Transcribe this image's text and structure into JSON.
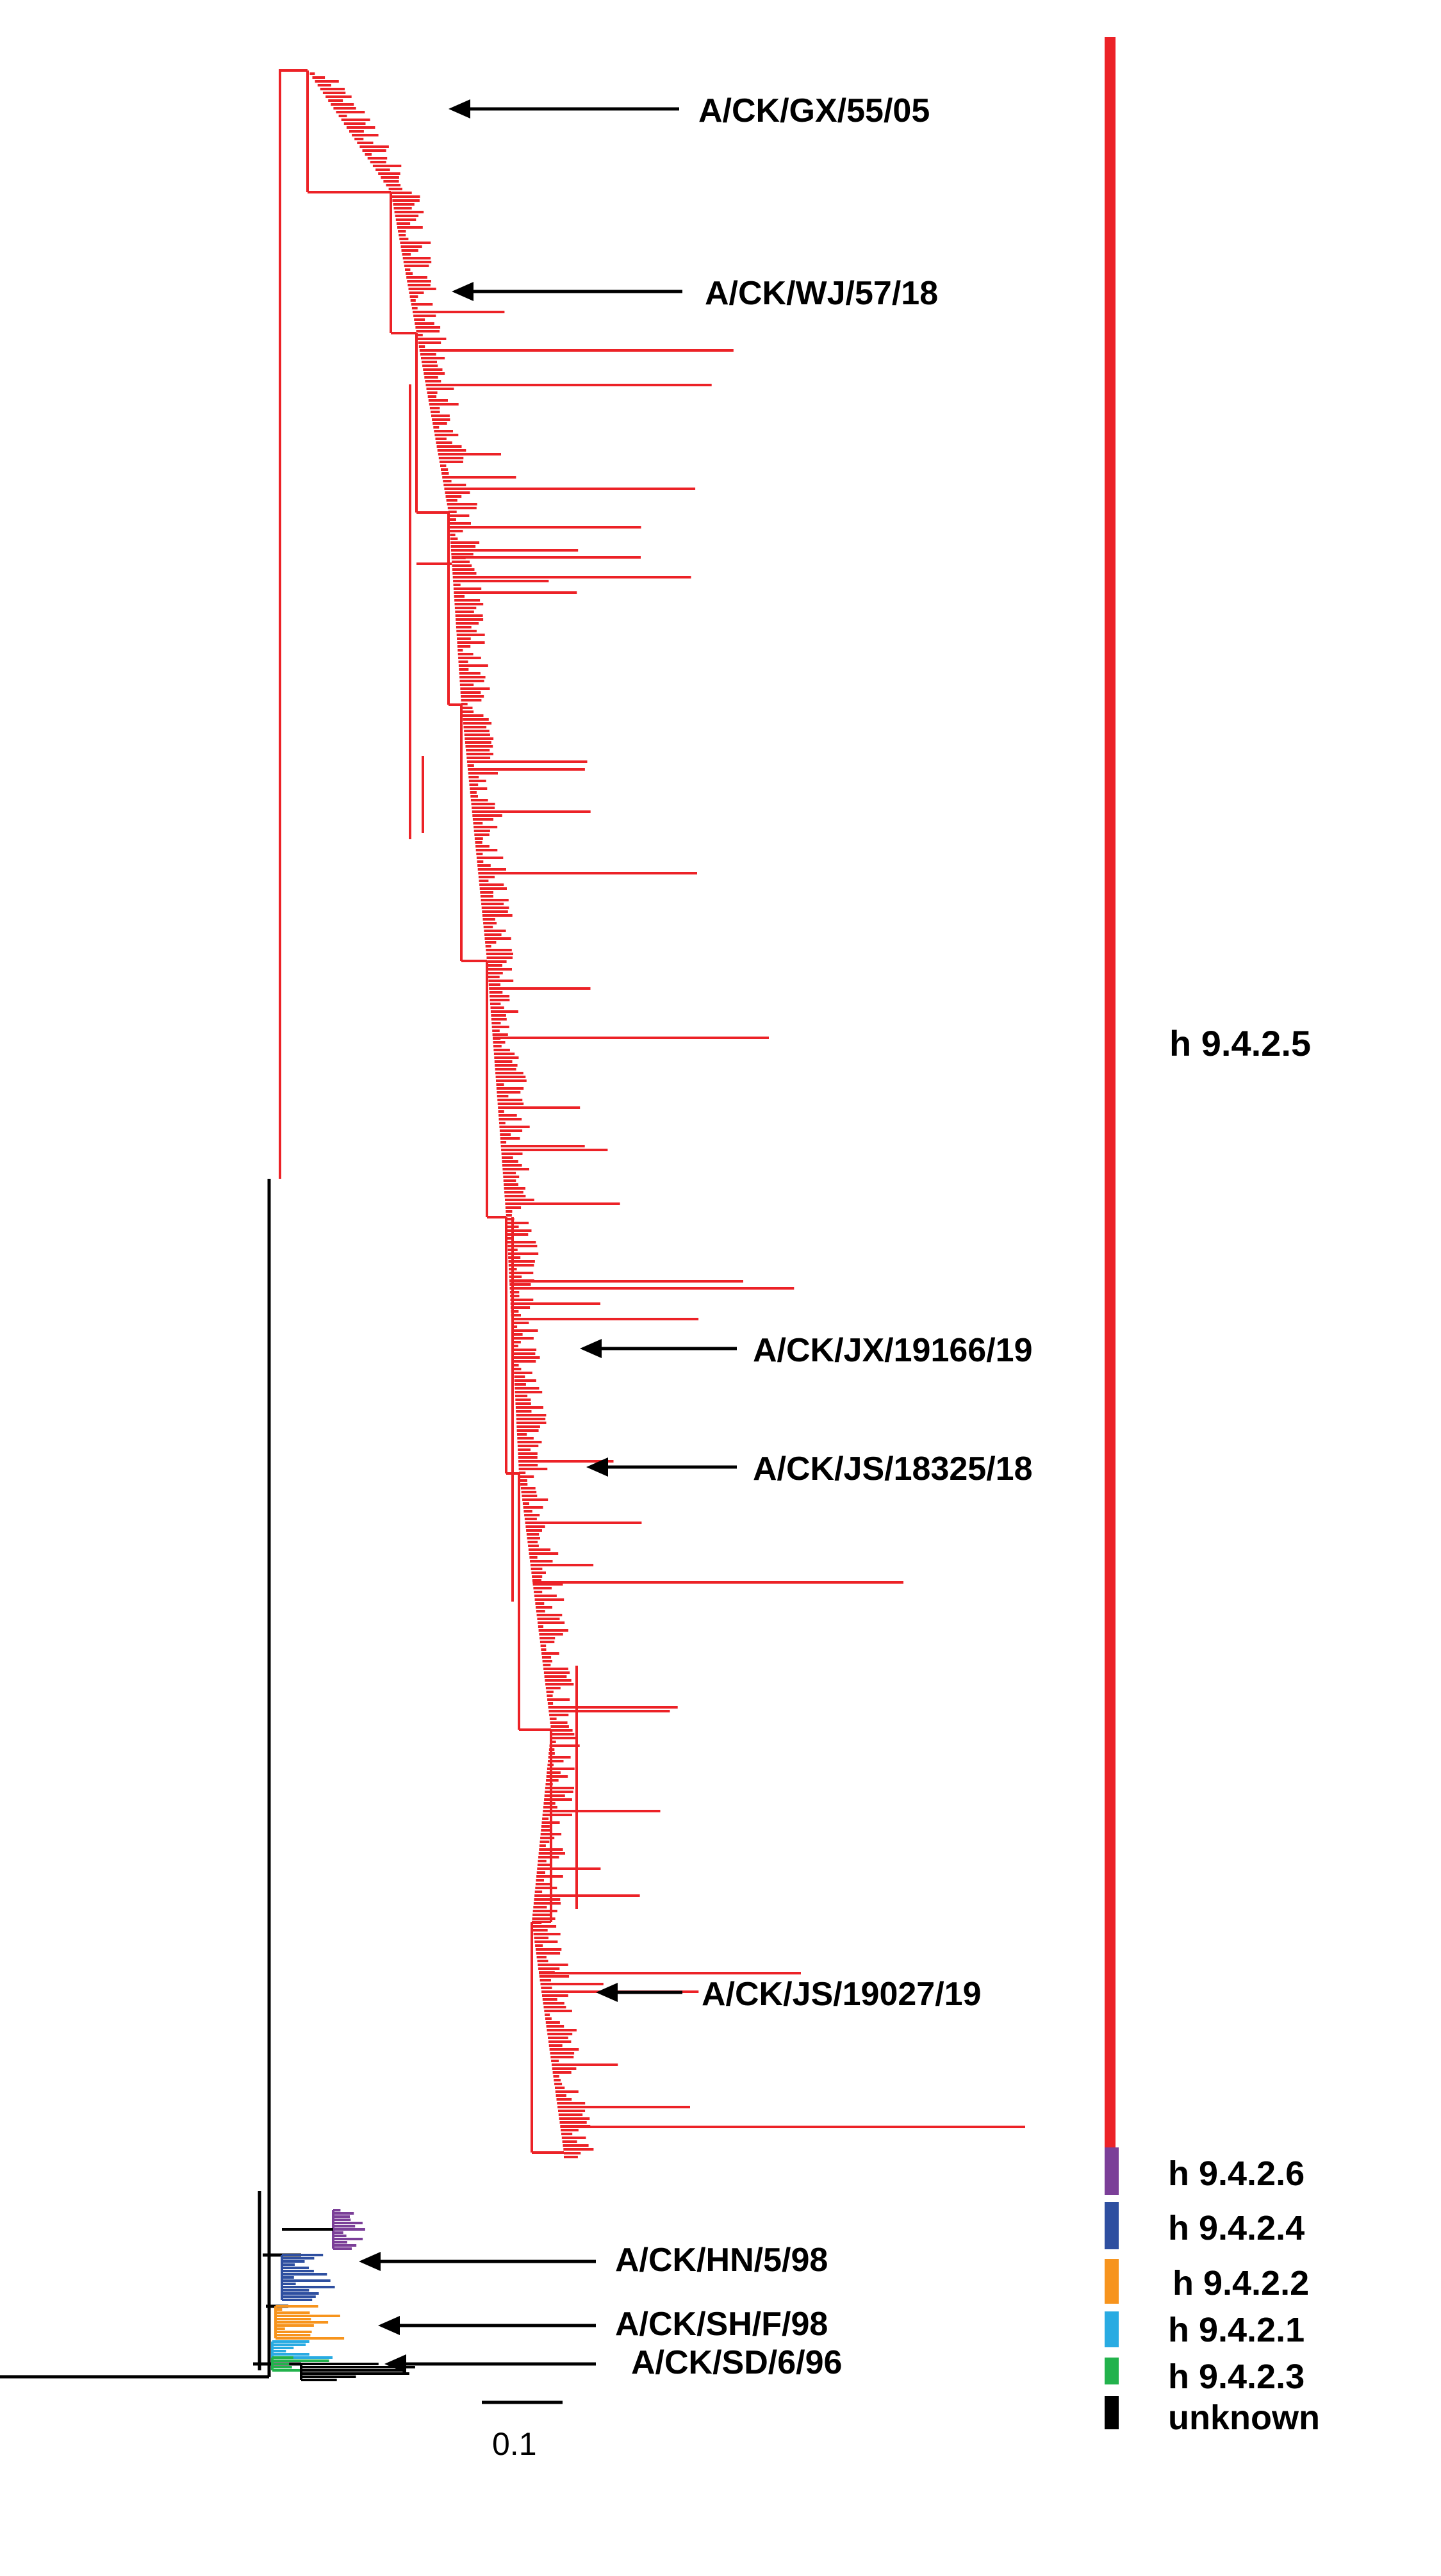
{
  "colors": {
    "h9425": "#ec2227",
    "h9426": "#7b3f98",
    "h9424": "#2e4fa0",
    "h9422": "#f7941d",
    "h9421": "#29abe2",
    "h9423": "#22b24c",
    "unknown": "#000000",
    "arrow": "#000000"
  },
  "strain_labels": [
    "A/CK/GX/55/05",
    "A/CK/WJ/57/18",
    "A/CK/JX/19166/19",
    "A/CK/JS/18325/18",
    "A/CK/JS/19027/19",
    "A/CK/HN/5/98",
    "A/CK/SH/F/98",
    "A/CK/SD/6/96"
  ],
  "main_clade_label": "h 9.4.2.5",
  "legend": [
    {
      "label": "h 9.4.2.6",
      "color": "#7b3f98"
    },
    {
      "label": "h 9.4.2.4",
      "color": "#2e4fa0"
    },
    {
      "label": "h 9.4.2.2",
      "color": "#f7941d"
    },
    {
      "label": "h 9.4.2.1",
      "color": "#29abe2"
    },
    {
      "label": "h 9.4.2.3",
      "color": "#22b24c"
    },
    {
      "label": "unknown",
      "color": "#000000"
    }
  ],
  "scale_bar": {
    "label": "0.1",
    "value": 0.1
  }
}
